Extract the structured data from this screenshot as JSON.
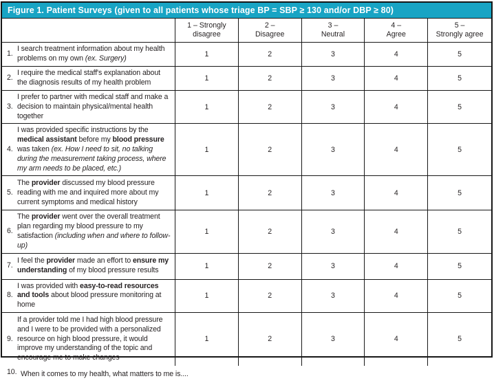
{
  "title": "Figure 1. Patient Surveys (given to all patients whose triage BP = SBP ≥ 130 and/or DBP ≥ 80)",
  "colors": {
    "title_bar_bg": "#18a4c4",
    "title_bar_text": "#ffffff",
    "border": "#161616",
    "body_text": "#231f20"
  },
  "columns": [
    {
      "label": "1 – Strongly\ndisagree"
    },
    {
      "label": "2 –\nDisagree"
    },
    {
      "label": "3 –\nNeutral"
    },
    {
      "label": "4 –\nAgree"
    },
    {
      "label": "5 –\nStrongly agree"
    }
  ],
  "rows": [
    {
      "num": "1.",
      "segments": [
        {
          "t": "I search treatment information about my health problems on my own "
        },
        {
          "t": "(ex. Surgery)",
          "i": true
        }
      ],
      "ratings": [
        "1",
        "2",
        "3",
        "4",
        "5"
      ]
    },
    {
      "num": "2.",
      "segments": [
        {
          "t": "I require the medical staff's explanation about the diagnosis results of my health problem"
        }
      ],
      "ratings": [
        "1",
        "2",
        "3",
        "4",
        "5"
      ]
    },
    {
      "num": "3.",
      "segments": [
        {
          "t": "I prefer to partner with medical staff and make a decision to maintain physical/mental health together"
        }
      ],
      "ratings": [
        "1",
        "2",
        "3",
        "4",
        "5"
      ]
    },
    {
      "num": "4.",
      "segments": [
        {
          "t": "I was provided specific instructions by the "
        },
        {
          "t": "medical assistant",
          "b": true
        },
        {
          "t": " before my "
        },
        {
          "t": "blood pressure",
          "b": true
        },
        {
          "t": " was taken "
        },
        {
          "t": "(ex. How I need to sit, no talking during the measurement taking process, where my arm needs to be placed, etc.)",
          "i": true
        }
      ],
      "ratings": [
        "1",
        "2",
        "3",
        "4",
        "5"
      ]
    },
    {
      "num": "5.",
      "segments": [
        {
          "t": "The "
        },
        {
          "t": "provider",
          "b": true
        },
        {
          "t": " discussed my blood pressure reading with me and inquired more about my current symptoms and medical history"
        }
      ],
      "ratings": [
        "1",
        "2",
        "3",
        "4",
        "5"
      ]
    },
    {
      "num": "6.",
      "segments": [
        {
          "t": "The "
        },
        {
          "t": "provider",
          "b": true
        },
        {
          "t": " went over the overall treatment plan regarding my blood pressure to my satisfaction "
        },
        {
          "t": "(including when and where to follow-up)",
          "i": true
        }
      ],
      "ratings": [
        "1",
        "2",
        "3",
        "4",
        "5"
      ]
    },
    {
      "num": "7.",
      "segments": [
        {
          "t": "I feel the "
        },
        {
          "t": "provider",
          "b": true
        },
        {
          "t": " made an effort to "
        },
        {
          "t": "ensure my understanding",
          "b": true
        },
        {
          "t": " of my blood pressure results"
        }
      ],
      "ratings": [
        "1",
        "2",
        "3",
        "4",
        "5"
      ]
    },
    {
      "num": "8.",
      "segments": [
        {
          "t": "I was provided with "
        },
        {
          "t": "easy-to-read resources and tools",
          "b": true
        },
        {
          "t": " about blood pressure monitoring at home"
        }
      ],
      "ratings": [
        "1",
        "2",
        "3",
        "4",
        "5"
      ]
    },
    {
      "num": "9.",
      "segments": [
        {
          "t": "If a provider told me I had high blood pressure and I were to be provided with a personalized resource on high blood pressure, it would improve my understanding of the topic and encourage me to make changes"
        }
      ],
      "ratings": [
        "1",
        "2",
        "3",
        "4",
        "5"
      ]
    }
  ],
  "footer_row": {
    "num": "10.",
    "segments": [
      {
        "t": "When it comes to my health, what matters to me is...."
      }
    ]
  }
}
